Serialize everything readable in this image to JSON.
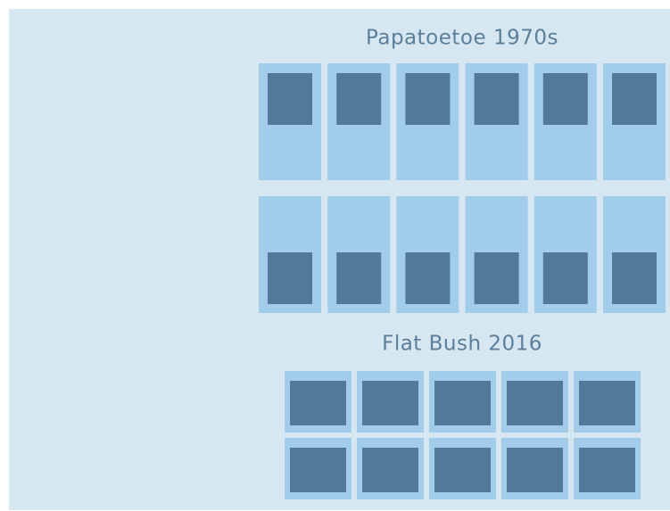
{
  "sections": [
    {
      "title": "Papatoetoe 1970s"
    },
    {
      "title": "Flat Bush 2016"
    }
  ]
}
